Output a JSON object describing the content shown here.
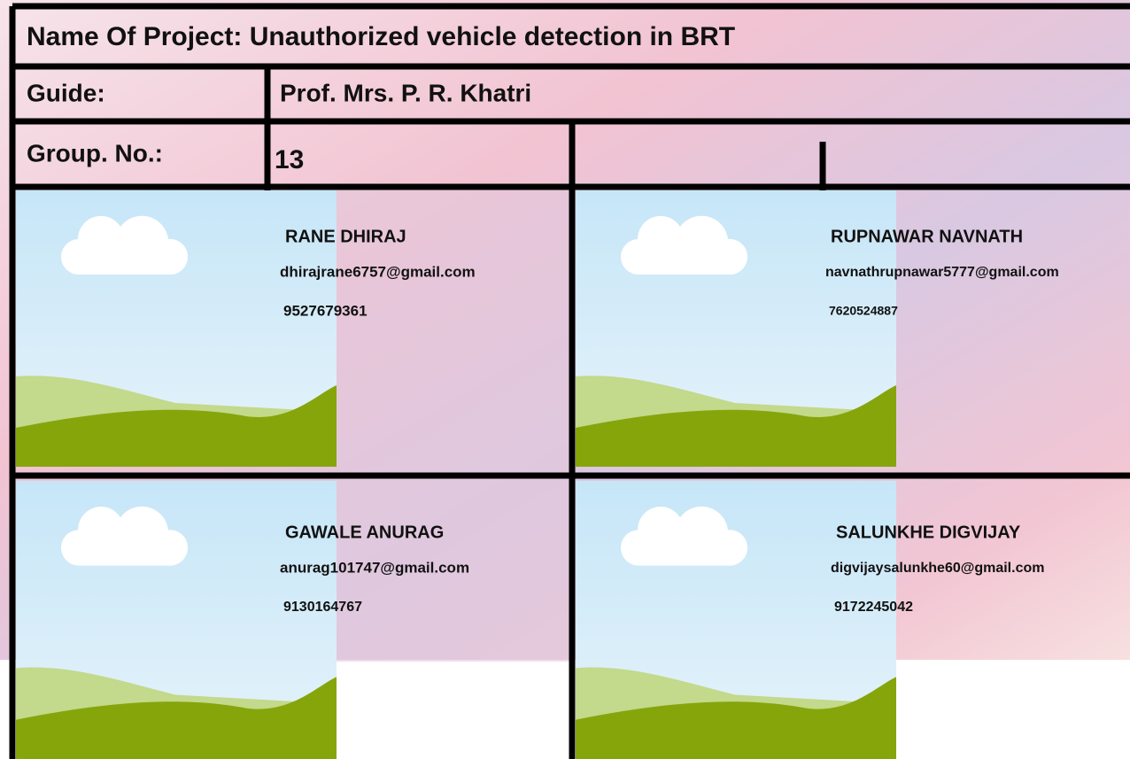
{
  "header": {
    "project": "Name Of Project: Unauthorized vehicle detection in BRT",
    "guide_label": "Guide:",
    "guide": "Prof. Mrs. P. R. Khatri",
    "group_label": "Group. No.:",
    "group": "13"
  },
  "members": [
    {
      "name": "RANE DHIRAJ",
      "email": "dhirajrane6757@gmail.com",
      "phone": "9527679361"
    },
    {
      "name": "RUPNAWAR NAVNATH",
      "email": "navnathrupnawar5777@gmail.com",
      "phone": "7620524887"
    },
    {
      "name": "GAWALE ANURAG",
      "email": "anurag101747@gmail.com",
      "phone": "9130164767"
    },
    {
      "name": "SALUNKHE DIGVIJAY",
      "email": "digvijaysalunkhe60@gmail.com",
      "phone": "9172245042"
    }
  ]
}
